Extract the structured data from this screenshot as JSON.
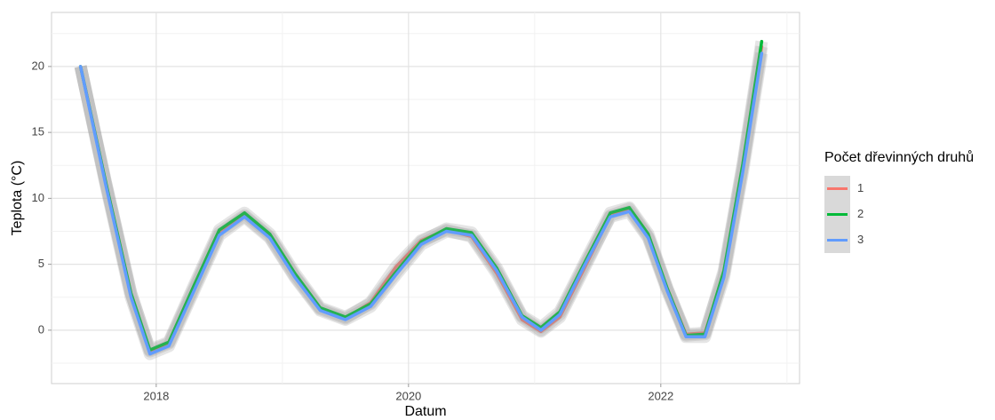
{
  "chart_data": {
    "type": "line",
    "x_label": "Datum",
    "y_label": "Teplota (°C)",
    "legend_title": "Počet dřevinných druhů",
    "legend_position": "right",
    "grid": true,
    "x": [
      2017.4,
      2017.6,
      2017.8,
      2017.95,
      2018.1,
      2018.3,
      2018.5,
      2018.7,
      2018.9,
      2019.1,
      2019.3,
      2019.5,
      2019.7,
      2019.9,
      2020.1,
      2020.3,
      2020.5,
      2020.7,
      2020.9,
      2021.05,
      2021.2,
      2021.4,
      2021.6,
      2021.75,
      2021.9,
      2022.05,
      2022.2,
      2022.35,
      2022.5,
      2022.65,
      2022.8
    ],
    "series": [
      {
        "name": "1",
        "color": "#F8766D",
        "values": [
          20,
          11.2,
          2.8,
          -1.6,
          -1.0,
          3.2,
          7.4,
          8.7,
          7.1,
          4.1,
          1.6,
          0.9,
          2.1,
          4.8,
          6.8,
          7.6,
          7.1,
          4.3,
          0.8,
          -0.1,
          1.0,
          4.8,
          8.7,
          9.2,
          7.1,
          3.2,
          -0.3,
          -0.2,
          4.3,
          12.4,
          21.5
        ]
      },
      {
        "name": "2",
        "color": "#00BA38",
        "values": [
          20,
          11.2,
          2.8,
          -1.5,
          -0.9,
          3.4,
          7.6,
          8.9,
          7.3,
          4.3,
          1.7,
          1.0,
          2.0,
          4.4,
          6.7,
          7.7,
          7.4,
          4.7,
          1.1,
          0.2,
          1.4,
          5.2,
          8.9,
          9.3,
          7.3,
          3.2,
          -0.4,
          -0.3,
          4.5,
          12.6,
          21.9
        ]
      },
      {
        "name": "3",
        "color": "#619CFF",
        "values": [
          20,
          11,
          2.5,
          -1.8,
          -1.2,
          3,
          7.2,
          8.6,
          7,
          4,
          1.5,
          0.8,
          1.8,
          4.2,
          6.5,
          7.5,
          7.2,
          4.5,
          1.0,
          0.0,
          1.2,
          5,
          8.6,
          9.0,
          7,
          3,
          -0.5,
          -0.5,
          4,
          12,
          21
        ]
      }
    ],
    "xlim": [
      2017.17,
      2023.1
    ],
    "xticks": [
      2018,
      2020,
      2022
    ],
    "ylim": [
      -4.05,
      24.1
    ],
    "yticks": [
      0,
      5,
      10,
      15,
      20
    ]
  }
}
